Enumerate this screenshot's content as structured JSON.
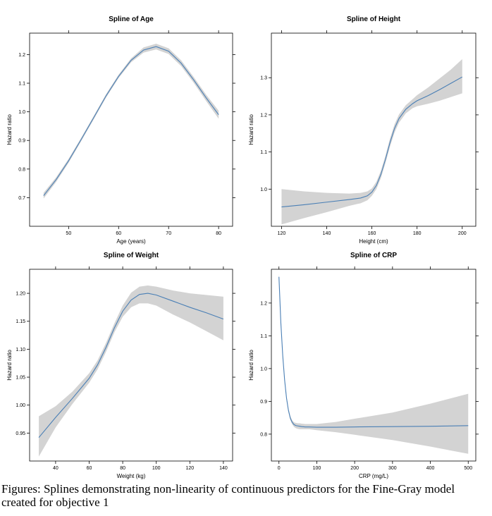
{
  "caption": "Figures: Splines demonstrating non-linearity of continuous predictors for the Fine-Gray model created for objective 1",
  "colors": {
    "line": "#4a7fb5",
    "band": "#d3d3d3",
    "frame": "#000000"
  },
  "chart_data": [
    {
      "id": "age",
      "type": "line",
      "title": "Spline of Age",
      "xlabel": "Age (years)",
      "ylabel": "Hazard ratio",
      "xlim": [
        42.2,
        82.8
      ],
      "ylim": [
        0.6,
        1.275
      ],
      "xticks": [
        50,
        60,
        70,
        80
      ],
      "yticks": [
        0.7,
        0.8,
        0.9,
        1.0,
        1.1,
        1.2
      ],
      "yticklabels": [
        "0.7",
        "0.8",
        "0.9",
        "1.0",
        "1.1",
        "1.2"
      ],
      "x": [
        45,
        47.5,
        50,
        52.5,
        55,
        57.5,
        60,
        62.5,
        65,
        67.5,
        70,
        72.5,
        75,
        77.5,
        80
      ],
      "y": [
        0.707,
        0.763,
        0.829,
        0.903,
        0.979,
        1.056,
        1.124,
        1.18,
        1.216,
        1.228,
        1.212,
        1.17,
        1.112,
        1.049,
        0.99
      ],
      "lower": [
        0.697,
        0.755,
        0.822,
        0.897,
        0.973,
        1.05,
        1.118,
        1.173,
        1.207,
        1.218,
        1.202,
        1.16,
        1.102,
        1.038,
        0.976
      ],
      "upper": [
        0.717,
        0.771,
        0.836,
        0.909,
        0.985,
        1.062,
        1.13,
        1.187,
        1.225,
        1.238,
        1.222,
        1.18,
        1.122,
        1.06,
        1.004
      ]
    },
    {
      "id": "height",
      "type": "line",
      "title": "Spline of Height",
      "xlabel": "Height (cm)",
      "ylabel": "Hazard ratio",
      "xlim": [
        115.5,
        206
      ],
      "ylim": [
        0.9,
        1.42
      ],
      "xticks": [
        120,
        140,
        160,
        180,
        200
      ],
      "yticks": [
        1.0,
        1.1,
        1.2,
        1.3
      ],
      "yticklabels": [
        "1.0",
        "1.1",
        "1.2",
        "1.3"
      ],
      "x": [
        120,
        130,
        140,
        150,
        155,
        158,
        160,
        162,
        164,
        166,
        168,
        170,
        172,
        175,
        178,
        180,
        185,
        190,
        195,
        200
      ],
      "y": [
        0.952,
        0.958,
        0.965,
        0.972,
        0.976,
        0.982,
        0.992,
        1.01,
        1.04,
        1.08,
        1.125,
        1.163,
        1.19,
        1.215,
        1.23,
        1.238,
        1.252,
        1.268,
        1.285,
        1.302
      ],
      "lower": [
        0.905,
        0.922,
        0.938,
        0.955,
        0.962,
        0.97,
        0.982,
        1.0,
        1.03,
        1.07,
        1.114,
        1.152,
        1.179,
        1.204,
        1.218,
        1.223,
        1.23,
        1.238,
        1.248,
        1.258
      ],
      "upper": [
        1.0,
        0.994,
        0.99,
        0.988,
        0.99,
        0.994,
        1.002,
        1.02,
        1.05,
        1.09,
        1.136,
        1.174,
        1.201,
        1.226,
        1.242,
        1.253,
        1.274,
        1.298,
        1.322,
        1.35
      ]
    },
    {
      "id": "weight",
      "type": "line",
      "title": "Spline of Weight",
      "xlabel": "Weight (kg)",
      "ylabel": "Hazard ratio",
      "xlim": [
        24.5,
        145.5
      ],
      "ylim": [
        0.9,
        1.243
      ],
      "xticks": [
        40,
        60,
        80,
        100,
        120,
        140
      ],
      "yticks": [
        0.95,
        1.0,
        1.05,
        1.1,
        1.15,
        1.2
      ],
      "yticklabels": [
        "0.95",
        "1.00",
        "1.05",
        "1.10",
        "1.15",
        "1.20"
      ],
      "x": [
        30,
        40,
        50,
        60,
        65,
        70,
        75,
        80,
        85,
        90,
        95,
        100,
        110,
        120,
        130,
        140
      ],
      "y": [
        0.942,
        0.978,
        1.012,
        1.048,
        1.072,
        1.103,
        1.138,
        1.168,
        1.188,
        1.198,
        1.2,
        1.197,
        1.186,
        1.175,
        1.165,
        1.154
      ],
      "lower": [
        0.908,
        0.96,
        1.002,
        1.04,
        1.064,
        1.095,
        1.13,
        1.158,
        1.175,
        1.182,
        1.182,
        1.178,
        1.162,
        1.148,
        1.132,
        1.116
      ],
      "upper": [
        0.98,
        0.998,
        1.024,
        1.057,
        1.08,
        1.111,
        1.146,
        1.178,
        1.201,
        1.212,
        1.214,
        1.212,
        1.205,
        1.2,
        1.197,
        1.194
      ]
    },
    {
      "id": "crp",
      "type": "line",
      "title": "Spline of CRP",
      "xlabel": "CRP (mg/L)",
      "ylabel": "Hazard ratio",
      "xlim": [
        -20,
        520
      ],
      "ylim": [
        0.718,
        1.303
      ],
      "xticks": [
        0,
        100,
        200,
        300,
        400,
        500
      ],
      "yticks": [
        0.8,
        0.9,
        1.0,
        1.1,
        1.2
      ],
      "yticklabels": [
        "0.8",
        "0.9",
        "1.0",
        "1.1",
        "1.2"
      ],
      "x": [
        0,
        5,
        10,
        15,
        20,
        25,
        30,
        35,
        40,
        45,
        50,
        55,
        60,
        70,
        80,
        100,
        150,
        200,
        300,
        400,
        500
      ],
      "y": [
        1.28,
        1.14,
        1.04,
        0.965,
        0.91,
        0.873,
        0.849,
        0.836,
        0.829,
        0.826,
        0.825,
        0.824,
        0.823,
        0.822,
        0.822,
        0.821,
        0.821,
        0.822,
        0.823,
        0.824,
        0.826
      ],
      "lower": [
        1.27,
        1.131,
        1.032,
        0.958,
        0.904,
        0.867,
        0.843,
        0.83,
        0.822,
        0.818,
        0.816,
        0.815,
        0.815,
        0.815,
        0.815,
        0.812,
        0.806,
        0.798,
        0.782,
        0.762,
        0.74
      ],
      "upper": [
        1.29,
        1.149,
        1.048,
        0.972,
        0.916,
        0.879,
        0.855,
        0.842,
        0.836,
        0.834,
        0.833,
        0.833,
        0.832,
        0.831,
        0.831,
        0.831,
        0.837,
        0.847,
        0.866,
        0.893,
        0.923
      ]
    }
  ]
}
